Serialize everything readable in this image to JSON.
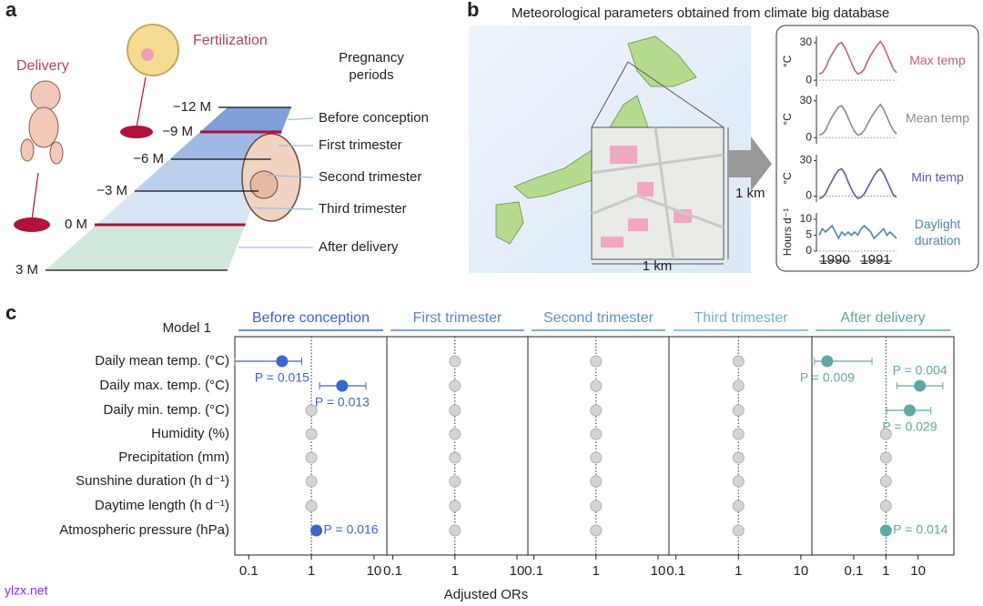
{
  "panel_a": {
    "label": "a",
    "fertilization": "Fertilization",
    "delivery": "Delivery",
    "heading": [
      "Pregnancy",
      "periods"
    ],
    "timepoints": [
      "−12 M",
      "−9 M",
      "−6 M",
      "−3 M",
      "0 M",
      "3 M"
    ],
    "periods": [
      "Before conception",
      "First trimester",
      "Second trimester",
      "Third trimester",
      "After delivery"
    ]
  },
  "panel_b": {
    "label": "b",
    "title": "Meteorological parameters obtained from climate big database",
    "scale_vertical": "1 km",
    "scale_horizontal": "1 km",
    "years": [
      "1990",
      "1991"
    ]
  },
  "panel_c": {
    "label": "c"
  },
  "watermark": "ylzx.net",
  "chart_data": [
    {
      "type": "line",
      "ylabel": "°C",
      "ylim": [
        -5,
        35
      ],
      "yticks": [
        0,
        30
      ],
      "series": [
        {
          "name": "Max temp",
          "color": "#c0607a",
          "values": [
            5,
            6,
            10,
            16,
            21,
            25,
            29,
            30,
            26,
            20,
            14,
            8,
            5,
            6,
            9,
            15,
            20,
            24,
            28,
            31,
            27,
            21,
            15,
            9,
            6
          ]
        }
      ]
    },
    {
      "type": "line",
      "ylabel": "°C",
      "ylim": [
        -5,
        35
      ],
      "yticks": [
        0,
        30
      ],
      "series": [
        {
          "name": "Mean temp",
          "color": "#8a8a8a",
          "values": [
            2,
            3,
            6,
            12,
            17,
            21,
            25,
            26,
            22,
            16,
            10,
            5,
            2,
            3,
            6,
            11,
            16,
            20,
            24,
            27,
            23,
            17,
            11,
            6,
            3
          ]
        }
      ]
    },
    {
      "type": "line",
      "ylabel": "°C",
      "ylim": [
        -5,
        35
      ],
      "yticks": [
        0,
        30
      ],
      "series": [
        {
          "name": "Min temp",
          "color": "#5a5aa8",
          "values": [
            -2,
            -1,
            2,
            8,
            13,
            18,
            22,
            23,
            19,
            12,
            6,
            1,
            -2,
            -1,
            2,
            7,
            12,
            17,
            21,
            23,
            19,
            13,
            7,
            1,
            -1
          ]
        }
      ]
    },
    {
      "type": "line",
      "ylabel": "Hours d⁻¹",
      "ylim": [
        0,
        12
      ],
      "yticks": [
        0,
        5,
        10
      ],
      "series": [
        {
          "name": "Daylight duration",
          "color": "#4f86a8",
          "values": [
            5,
            7,
            6,
            7,
            8,
            6,
            4,
            6,
            5,
            6,
            5,
            6,
            5,
            7,
            8,
            7,
            6,
            4,
            5,
            6,
            7,
            5,
            6,
            5,
            4
          ]
        }
      ]
    },
    {
      "type": "forest",
      "title": "Model 1",
      "xlabel": "Adjusted ORs",
      "log_x": true,
      "neutral_color": "#d4d4d4",
      "categories": [
        "Daily mean temp. (°C)",
        "Daily max. temp. (°C)",
        "Daily min. temp. (°C)",
        "Humidity (%)",
        "Precipitation (mm)",
        "Sunshine duration (h d⁻¹)",
        "Daytime length (h d⁻¹)",
        "Atmospheric pressure (hPa)"
      ],
      "panels": [
        {
          "name": "Before conception",
          "color": "#3a66c8",
          "xlim": [
            0.06,
            16
          ],
          "xticks": [
            0.1,
            1,
            10
          ],
          "values": [
            0.34,
            3.1,
            1,
            1,
            1,
            1,
            1,
            1.2
          ],
          "lower": [
            0.06,
            1.35,
            null,
            null,
            null,
            null,
            null,
            null
          ],
          "upper": [
            0.7,
            7.4,
            null,
            null,
            null,
            null,
            null,
            null
          ],
          "annotations": [
            "P = 0.015",
            "P = 0.013",
            null,
            null,
            null,
            null,
            null,
            "P = 0.016"
          ]
        },
        {
          "name": "First trimester",
          "color": "#5a86c8",
          "xlim": [
            0.08,
            15
          ],
          "xticks": [
            0.1,
            1,
            10
          ],
          "values": [
            1,
            1,
            1,
            1,
            1,
            1,
            1,
            1
          ],
          "lower": [
            null,
            null,
            null,
            null,
            null,
            null,
            null,
            null
          ],
          "upper": [
            null,
            null,
            null,
            null,
            null,
            null,
            null,
            null
          ],
          "annotations": [
            null,
            null,
            null,
            null,
            null,
            null,
            null,
            null
          ]
        },
        {
          "name": "Second trimester",
          "color": "#5b93c9",
          "xlim": [
            0.08,
            15
          ],
          "xticks": [
            0.1,
            1,
            10
          ],
          "values": [
            1,
            1,
            1,
            1,
            1,
            1,
            1,
            1
          ],
          "lower": [
            null,
            null,
            null,
            null,
            null,
            null,
            null,
            null
          ],
          "upper": [
            null,
            null,
            null,
            null,
            null,
            null,
            null,
            null
          ],
          "annotations": [
            null,
            null,
            null,
            null,
            null,
            null,
            null,
            null
          ]
        },
        {
          "name": "Third trimester",
          "color": "#6fb3cc",
          "xlim": [
            0.08,
            15
          ],
          "xticks": [
            0.1,
            1,
            10
          ],
          "values": [
            1,
            1,
            1,
            1,
            1,
            1,
            1,
            1
          ],
          "lower": [
            null,
            null,
            null,
            null,
            null,
            null,
            null,
            null
          ],
          "upper": [
            null,
            null,
            null,
            null,
            null,
            null,
            null,
            null
          ],
          "annotations": [
            null,
            null,
            null,
            null,
            null,
            null,
            null,
            null
          ]
        },
        {
          "name": "After delivery",
          "color": "#5fa8a4",
          "xlim": [
            0.005,
            130
          ],
          "xticks": [
            0.1,
            1,
            10
          ],
          "values": [
            0.015,
            11.4,
            5.5,
            1,
            1,
            1,
            1,
            1
          ],
          "lower": [
            0.006,
            2.2,
            1.05,
            null,
            null,
            null,
            null,
            null
          ],
          "upper": [
            0.37,
            59,
            25,
            null,
            null,
            null,
            null,
            null
          ],
          "annotations": [
            "P = 0.009",
            "P = 0.004",
            "P = 0.029",
            null,
            null,
            null,
            null,
            "P = 0.014"
          ]
        }
      ]
    }
  ]
}
